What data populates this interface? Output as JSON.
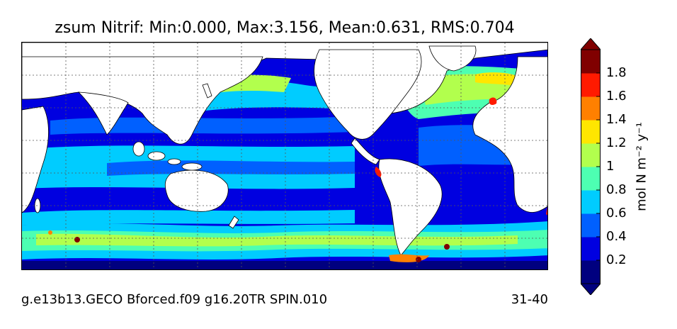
{
  "title": "zsum Nitrif: Min:0.000, Max:3.156, Mean:0.631, RMS:0.704",
  "footer": {
    "run_name": "g.e13b13.GECO Bforced.f09 g16.20TR SPIN.010",
    "years": "31-40"
  },
  "colorbar": {
    "units_label": "mol N m⁻² y⁻¹",
    "ticks": [
      "0.2",
      "0.4",
      "0.6",
      "0.8",
      "1",
      "1.2",
      "1.4",
      "1.6",
      "1.8"
    ],
    "level_colors": [
      "#00007f",
      "#0000e0",
      "#0060ff",
      "#00ccff",
      "#4dffb2",
      "#b2ff4d",
      "#ffe600",
      "#ff8000",
      "#ff1a00",
      "#800000"
    ]
  }
}
